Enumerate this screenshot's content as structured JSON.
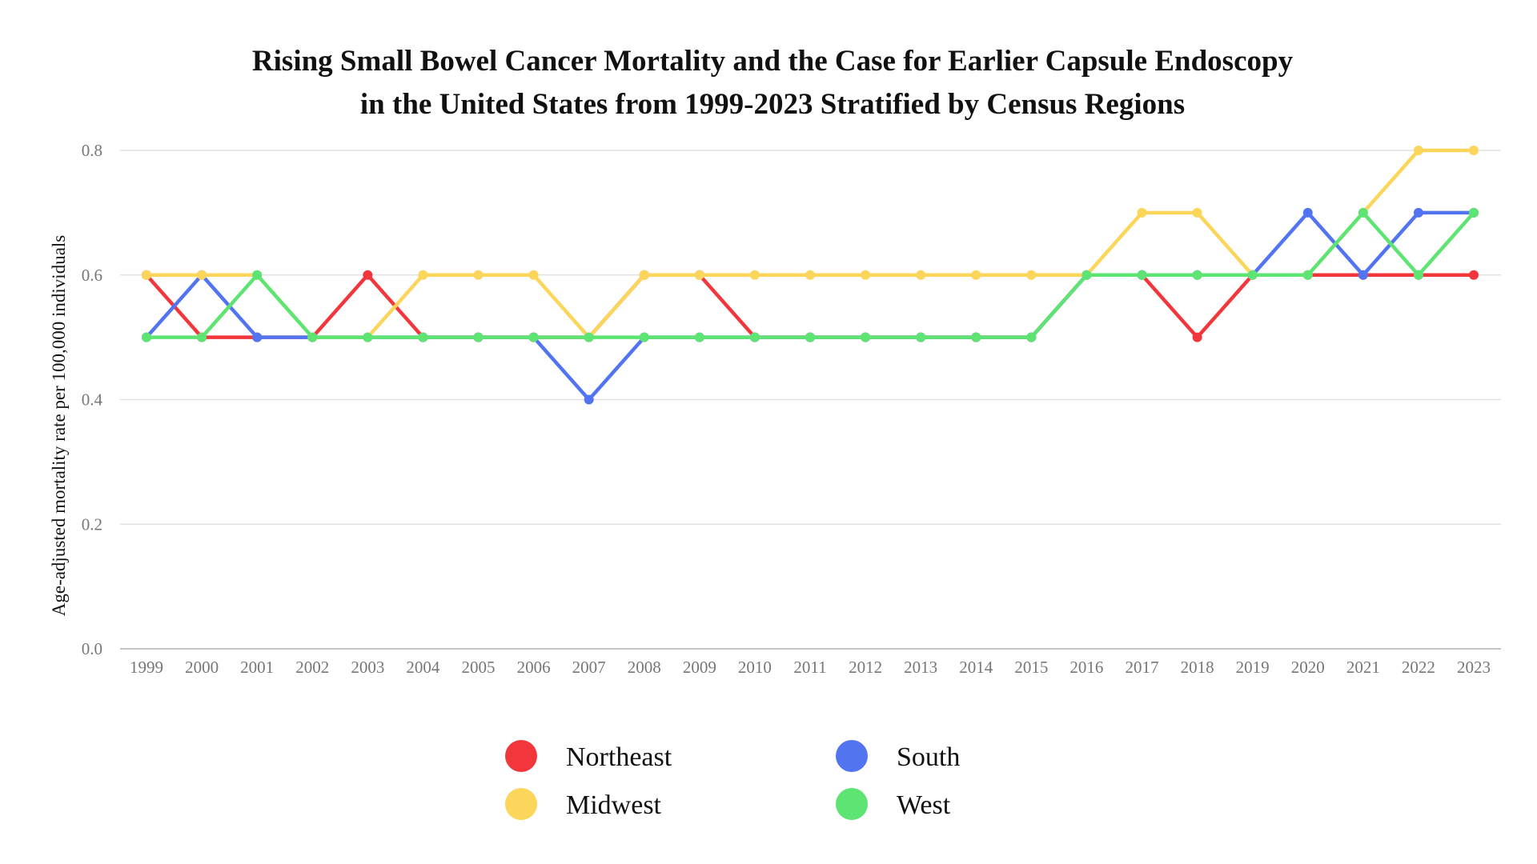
{
  "chart_data": {
    "type": "line",
    "title": [
      "Rising Small Bowel Cancer Mortality and the Case for Earlier Capsule Endoscopy",
      "in the United States from 1999-2023 Stratified by Census Regions"
    ],
    "xlabel": "",
    "ylabel": "Age-adjusted mortality rate per 100,000 individuals",
    "ylim": [
      0,
      0.8
    ],
    "yticks": [
      "0.0",
      "0.2",
      "0.4",
      "0.6",
      "0.8"
    ],
    "grid": true,
    "legend_position": "bottom",
    "categories": [
      "1999",
      "2000",
      "2001",
      "2002",
      "2003",
      "2004",
      "2005",
      "2006",
      "2007",
      "2008",
      "2009",
      "2010",
      "2011",
      "2012",
      "2013",
      "2014",
      "2015",
      "2016",
      "2017",
      "2018",
      "2019",
      "2020",
      "2021",
      "2022",
      "2023"
    ],
    "series": [
      {
        "name": "Northeast",
        "color": "#f2373c",
        "values": [
          0.6,
          0.5,
          0.5,
          0.5,
          0.6,
          0.5,
          0.5,
          0.5,
          0.5,
          0.6,
          0.6,
          0.5,
          0.5,
          0.5,
          0.5,
          0.5,
          0.5,
          0.6,
          0.6,
          0.5,
          0.6,
          0.6,
          0.6,
          0.6,
          0.6
        ]
      },
      {
        "name": "South",
        "color": "#5374f0",
        "values": [
          0.5,
          0.6,
          0.5,
          0.5,
          0.5,
          0.5,
          0.5,
          0.5,
          0.4,
          0.5,
          0.5,
          0.5,
          0.5,
          0.5,
          0.5,
          0.5,
          0.5,
          0.6,
          0.6,
          0.6,
          0.6,
          0.7,
          0.6,
          0.7,
          0.7
        ]
      },
      {
        "name": "Midwest",
        "color": "#fbd65a",
        "values": [
          0.6,
          0.6,
          0.6,
          0.5,
          0.5,
          0.6,
          0.6,
          0.6,
          0.5,
          0.6,
          0.6,
          0.6,
          0.6,
          0.6,
          0.6,
          0.6,
          0.6,
          0.6,
          0.7,
          0.7,
          0.6,
          0.6,
          0.7,
          0.8,
          0.8
        ]
      },
      {
        "name": "West",
        "color": "#5de473",
        "values": [
          0.5,
          0.5,
          0.6,
          0.5,
          0.5,
          0.5,
          0.5,
          0.5,
          0.5,
          0.5,
          0.5,
          0.5,
          0.5,
          0.5,
          0.5,
          0.5,
          0.5,
          0.6,
          0.6,
          0.6,
          0.6,
          0.6,
          0.7,
          0.6,
          0.7
        ]
      }
    ],
    "legend": [
      {
        "name": "Northeast",
        "color": "#f2373c"
      },
      {
        "name": "South",
        "color": "#5374f0"
      },
      {
        "name": "Midwest",
        "color": "#fbd65a"
      },
      {
        "name": "West",
        "color": "#5de473"
      }
    ]
  }
}
